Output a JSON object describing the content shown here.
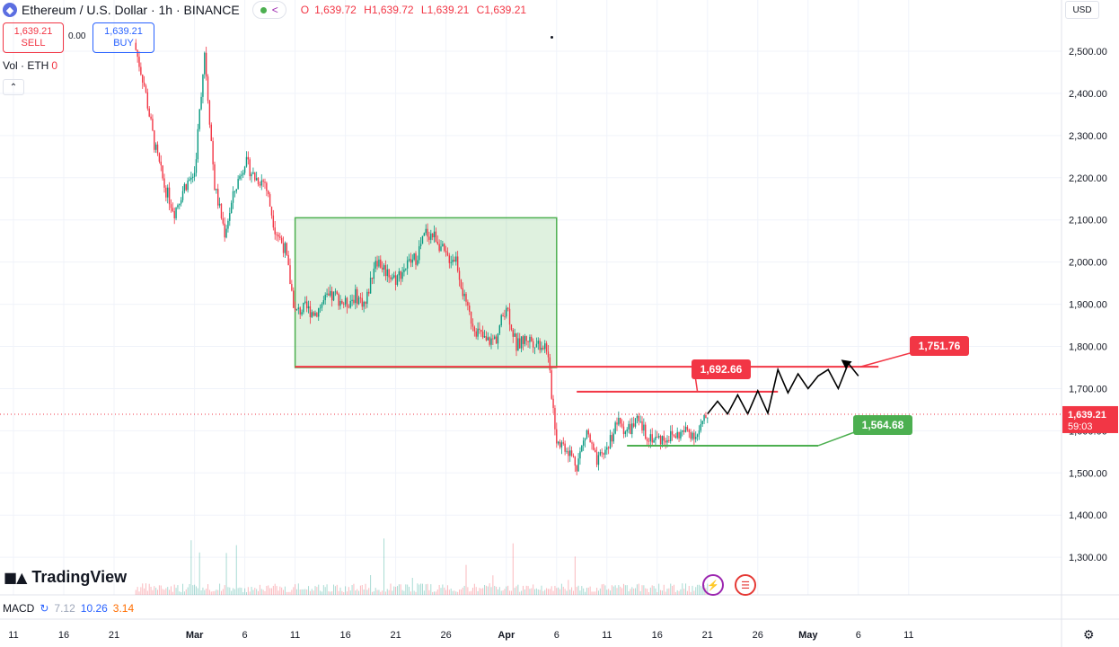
{
  "header": {
    "symbol_icon": "ethereum-icon",
    "title": "Ethereum / U.S. Dollar · 1h · BINANCE",
    "open_label": "O",
    "open": "1,639.72",
    "high_label": "H",
    "high": "1,639.72",
    "low_label": "L",
    "low": "1,639.21",
    "close_label": "C",
    "close": "1,639.21"
  },
  "trade": {
    "sell_price": "1,639.21",
    "sell_label": "SELL",
    "buy_price": "1,639.21",
    "buy_label": "BUY",
    "spread": "0.00"
  },
  "volume_legend": {
    "label": "Vol · ETH",
    "value": "0"
  },
  "currency": "USD",
  "branding": "TradingView",
  "macd": {
    "label": "MACD",
    "v1": "7.12",
    "v2": "10.26",
    "v3": "3.14"
  },
  "colors": {
    "up": "#089981",
    "down": "#f23645",
    "box": "#4caf50",
    "resistance": "#f23645",
    "support": "#4caf50"
  },
  "chart_data": {
    "type": "candlestick",
    "symbol": "ETHUSD",
    "interval": "1h",
    "ylim": [
      1220,
      2560
    ],
    "y_ticks": [
      "2,500.00",
      "2,400.00",
      "2,300.00",
      "2,200.00",
      "2,100.00",
      "2,000.00",
      "1,900.00",
      "1,800.00",
      "1,700.00",
      "1,600.00",
      "1,500.00",
      "1,400.00",
      "1,300.00"
    ],
    "x_ticks": [
      "11",
      "16",
      "21",
      "Mar",
      "6",
      "11",
      "16",
      "21",
      "26",
      "Apr",
      "6",
      "11",
      "16",
      "21",
      "26",
      "May",
      "6",
      "11"
    ],
    "price_path": [
      [
        "2025-02-23",
        2520
      ],
      [
        "2025-02-24",
        2420
      ],
      [
        "2025-02-25",
        2280
      ],
      [
        "2025-02-26",
        2180
      ],
      [
        "2025-02-27",
        2120
      ],
      [
        "2025-02-28",
        2180
      ],
      [
        "2025-03-01",
        2210
      ],
      [
        "2025-03-02",
        2500
      ],
      [
        "2025-03-03",
        2180
      ],
      [
        "2025-03-04",
        2070
      ],
      [
        "2025-03-05",
        2170
      ],
      [
        "2025-03-06",
        2240
      ],
      [
        "2025-03-07",
        2200
      ],
      [
        "2025-03-08",
        2190
      ],
      [
        "2025-03-09",
        2080
      ],
      [
        "2025-03-10",
        2030
      ],
      [
        "2025-03-11",
        1880
      ],
      [
        "2025-03-12",
        1890
      ],
      [
        "2025-03-13",
        1880
      ],
      [
        "2025-03-14",
        1910
      ],
      [
        "2025-03-15",
        1920
      ],
      [
        "2025-03-16",
        1900
      ],
      [
        "2025-03-17",
        1920
      ],
      [
        "2025-03-18",
        1900
      ],
      [
        "2025-03-19",
        2010
      ],
      [
        "2025-03-20",
        1980
      ],
      [
        "2025-03-21",
        1960
      ],
      [
        "2025-03-22",
        1990
      ],
      [
        "2025-03-23",
        2010
      ],
      [
        "2025-03-24",
        2070
      ],
      [
        "2025-03-25",
        2060
      ],
      [
        "2025-03-26",
        2010
      ],
      [
        "2025-03-27",
        2010
      ],
      [
        "2025-03-28",
        1890
      ],
      [
        "2025-03-29",
        1840
      ],
      [
        "2025-03-30",
        1810
      ],
      [
        "2025-03-31",
        1820
      ],
      [
        "2025-04-01",
        1900
      ],
      [
        "2025-04-02",
        1800
      ],
      [
        "2025-04-03",
        1820
      ],
      [
        "2025-04-04",
        1810
      ],
      [
        "2025-04-05",
        1800
      ],
      [
        "2025-04-06",
        1580
      ],
      [
        "2025-04-07",
        1560
      ],
      [
        "2025-04-08",
        1520
      ],
      [
        "2025-04-09",
        1600
      ],
      [
        "2025-04-10",
        1520
      ],
      [
        "2025-04-11",
        1560
      ],
      [
        "2025-04-12",
        1620
      ],
      [
        "2025-04-13",
        1600
      ],
      [
        "2025-04-14",
        1620
      ],
      [
        "2025-04-15",
        1590
      ],
      [
        "2025-04-16",
        1580
      ],
      [
        "2025-04-17",
        1585
      ],
      [
        "2025-04-18",
        1590
      ],
      [
        "2025-04-19",
        1600
      ],
      [
        "2025-04-20",
        1590
      ],
      [
        "2025-04-21",
        1639.21
      ]
    ],
    "consolidation_box": {
      "start": "2025-03-11",
      "end": "2025-04-06",
      "low": 1750,
      "high": 2105
    },
    "levels": [
      {
        "label": "1,692.66",
        "price": 1692.66,
        "start": "2025-04-08",
        "end": "2025-04-28",
        "color": "#f23645"
      },
      {
        "label": "1,751.76",
        "price": 1751.76,
        "start": "2025-03-11",
        "end": "2025-05-08",
        "color": "#f23645"
      },
      {
        "label": "1,564.68",
        "price": 1564.68,
        "start": "2025-04-13",
        "end": "2025-05-02",
        "color": "#4caf50"
      }
    ],
    "projection_path": [
      [
        "2025-04-21",
        1640
      ],
      [
        "2025-04-22",
        1670
      ],
      [
        "2025-04-23",
        1640
      ],
      [
        "2025-04-24",
        1685
      ],
      [
        "2025-04-25",
        1640
      ],
      [
        "2025-04-26",
        1695
      ],
      [
        "2025-04-27",
        1642
      ],
      [
        "2025-04-28",
        1745
      ],
      [
        "2025-04-29",
        1690
      ],
      [
        "2025-04-30",
        1735
      ],
      [
        "2025-05-01",
        1700
      ],
      [
        "2025-05-02",
        1730
      ],
      [
        "2025-05-03",
        1745
      ],
      [
        "2025-05-04",
        1700
      ],
      [
        "2025-05-05",
        1760
      ],
      [
        "2025-05-06",
        1730
      ]
    ],
    "current_price": "1,639.21",
    "countdown": "59:03"
  }
}
